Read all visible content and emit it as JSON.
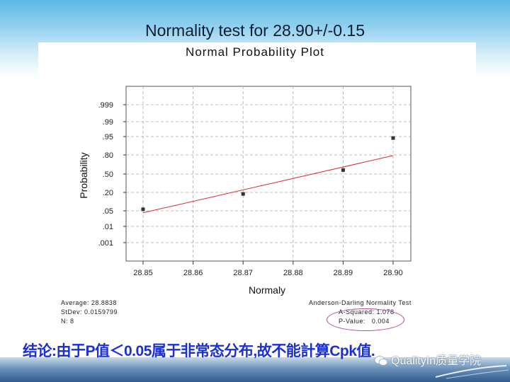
{
  "slide": {
    "title": "Normality test for 28.90+/-0.15",
    "conclusion": "结论:由于P值＜0.05属于非常态分布,故不能計算Cpk值.",
    "watermark": "QualityIn质量学院",
    "watermark_icon": "wechat-icon"
  },
  "chart_data": {
    "type": "scatter",
    "title": "Normal Probability Plot",
    "xlabel": "Normaly",
    "ylabel": "Probability",
    "x_ticks": [
      "28.85",
      "28.86",
      "28.87",
      "28.88",
      "28.89",
      "28.90"
    ],
    "y_ticks": [
      ".999",
      ".99",
      ".95",
      ".80",
      ".50",
      ".20",
      ".05",
      ".01",
      ".001"
    ],
    "xlim": [
      28.847,
      28.903
    ],
    "grid": true,
    "series": [
      {
        "name": "data",
        "x": [
          28.85,
          28.87,
          28.89,
          28.9
        ],
        "y": [
          0.0625,
          0.1875,
          0.5625,
          0.9375
        ],
        "color": "#333333"
      },
      {
        "name": "fit-line",
        "x": [
          28.85,
          28.9
        ],
        "y": [
          0.045,
          0.79
        ],
        "color": "#d62b2b"
      }
    ],
    "stats": {
      "average_label": "Average: 28.8838",
      "stdev_label": "StDev: 0.0159799",
      "n_label": "N: 8",
      "average": 28.8838,
      "stdev": 0.0159799,
      "n": 8
    },
    "normality_test": {
      "title": "Anderson-Darling Normality Test",
      "a_squared_label": "A-Squared: 1.078",
      "p_value_label": "P-Value:   0.004",
      "a_squared": 1.078,
      "p_value": 0.004
    },
    "colors": {
      "fit_line": "#d62b2b",
      "highlight_ellipse": "#b04aa0",
      "conclusion_text": "#1a2fd6"
    }
  }
}
